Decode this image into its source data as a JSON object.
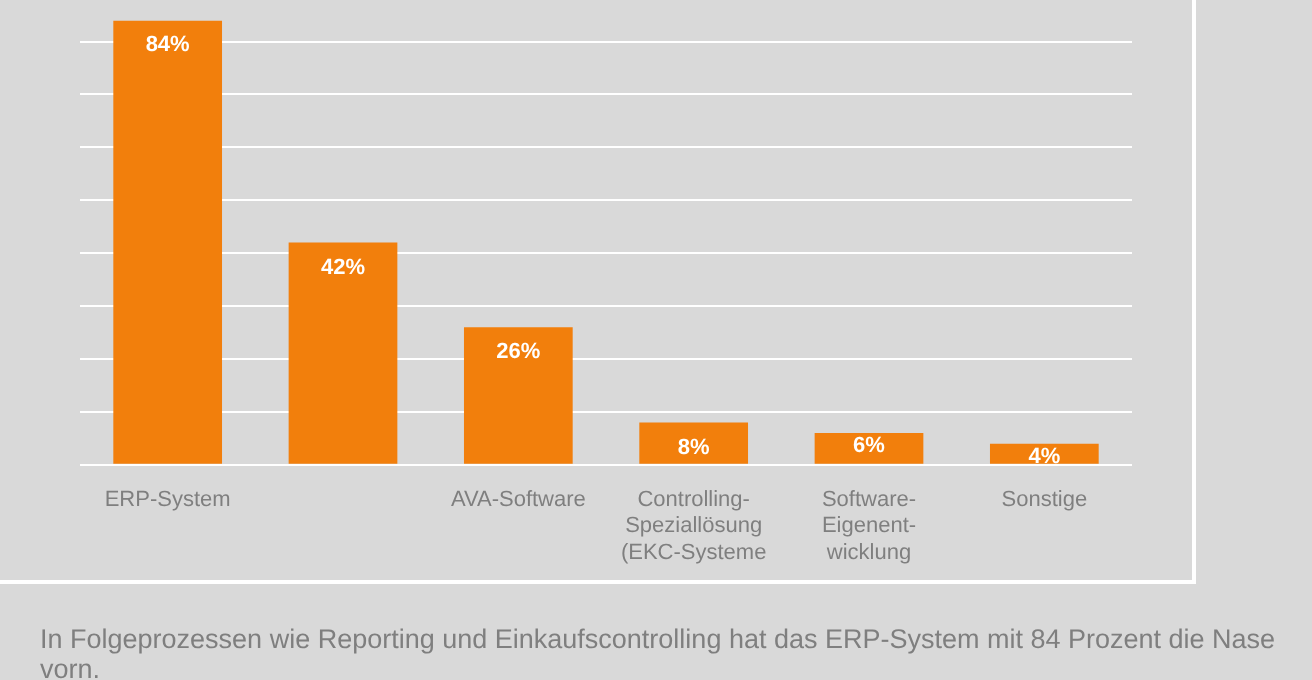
{
  "chart_data": {
    "type": "bar",
    "categories": [
      "ERP-System",
      null,
      "AVA-Software",
      "Controlling-\nSpeziallösung\n(EKC-Systeme",
      "Software-\nEigenent-\nwicklung",
      "Sonstige"
    ],
    "values": [
      84,
      42,
      26,
      8,
      6,
      4
    ],
    "color": "#f27f0c",
    "value_labels": [
      "84%",
      "42%",
      "26%",
      "8%",
      "6%",
      "4%"
    ],
    "ylim": [
      0,
      84
    ],
    "yticks": [
      {
        "value": 0,
        "label": null
      },
      {
        "value": 10,
        "label": null
      },
      {
        "value": 20,
        "label": null
      },
      {
        "value": 30,
        "label": null
      },
      {
        "value": 40,
        "label": null
      },
      {
        "value": 50,
        "label": null
      },
      {
        "value": 60,
        "label": null
      },
      {
        "value": 70,
        "label": null
      },
      {
        "value": 80,
        "label": null
      }
    ],
    "grid": "y",
    "annotations": [
      "In Folgeprozessen wie Reporting und Einkaufscontrolling hat das ERP-System mit 84 Prozent die Nase vorn."
    ]
  }
}
